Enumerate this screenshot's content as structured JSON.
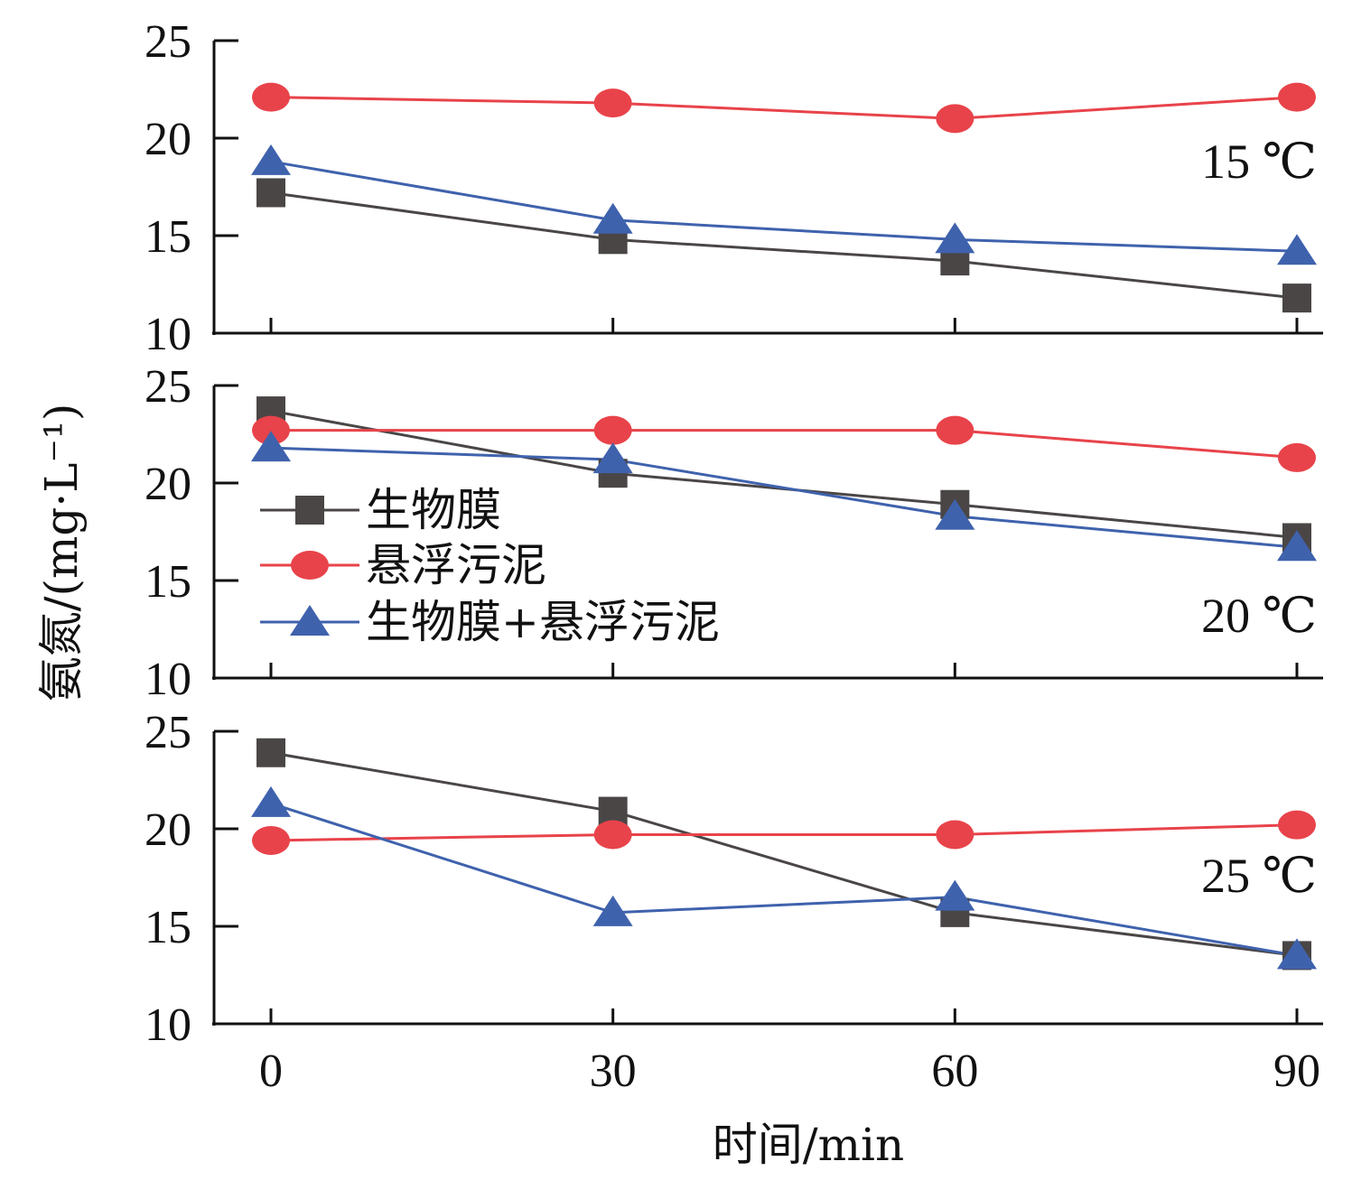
{
  "chart_data": {
    "type": "line",
    "x": [
      0,
      30,
      60,
      90
    ],
    "xlabel": "时间/min",
    "ylabel": "氨氮/(mg·L⁻¹)",
    "xlim": [
      -5,
      95
    ],
    "ylim": [
      10,
      25
    ],
    "x_ticks": [
      "0",
      "30",
      "60",
      "90"
    ],
    "y_ticks": [
      "10",
      "15",
      "20",
      "25"
    ],
    "legend": {
      "placement": "middle-left of the 20 °C panel",
      "entries": [
        "生物膜",
        "悬浮污泥",
        "生物膜+悬浮污泥"
      ]
    },
    "series_styles": [
      {
        "name": "生物膜",
        "color": "#4a4646",
        "marker": "square"
      },
      {
        "name": "悬浮污泥",
        "color": "#e8434a",
        "marker": "circle"
      },
      {
        "name": "生物膜+悬浮污泥",
        "color": "#3f62ad",
        "marker": "triangle"
      }
    ],
    "panels": [
      {
        "label": "15 ℃",
        "series": [
          {
            "name": "生物膜",
            "values": [
              17.2,
              14.8,
              13.7,
              11.8
            ]
          },
          {
            "name": "悬浮污泥",
            "values": [
              22.1,
              21.8,
              21.0,
              22.1
            ]
          },
          {
            "name": "生物膜+悬浮污泥",
            "values": [
              18.8,
              15.8,
              14.8,
              14.2
            ]
          }
        ]
      },
      {
        "label": "20 ℃",
        "series": [
          {
            "name": "生物膜",
            "values": [
              23.7,
              20.5,
              18.9,
              17.2
            ]
          },
          {
            "name": "悬浮污泥",
            "values": [
              22.7,
              22.7,
              22.7,
              21.3
            ]
          },
          {
            "name": "生物膜+悬浮污泥",
            "values": [
              21.8,
              21.2,
              18.3,
              16.7
            ]
          }
        ]
      },
      {
        "label": "25 ℃",
        "series": [
          {
            "name": "生物膜",
            "values": [
              23.9,
              20.9,
              15.7,
              13.5
            ]
          },
          {
            "name": "悬浮污泥",
            "values": [
              19.4,
              19.7,
              19.7,
              20.2
            ]
          },
          {
            "name": "生物膜+悬浮污泥",
            "values": [
              21.3,
              15.7,
              16.5,
              13.5
            ]
          }
        ]
      }
    ]
  }
}
